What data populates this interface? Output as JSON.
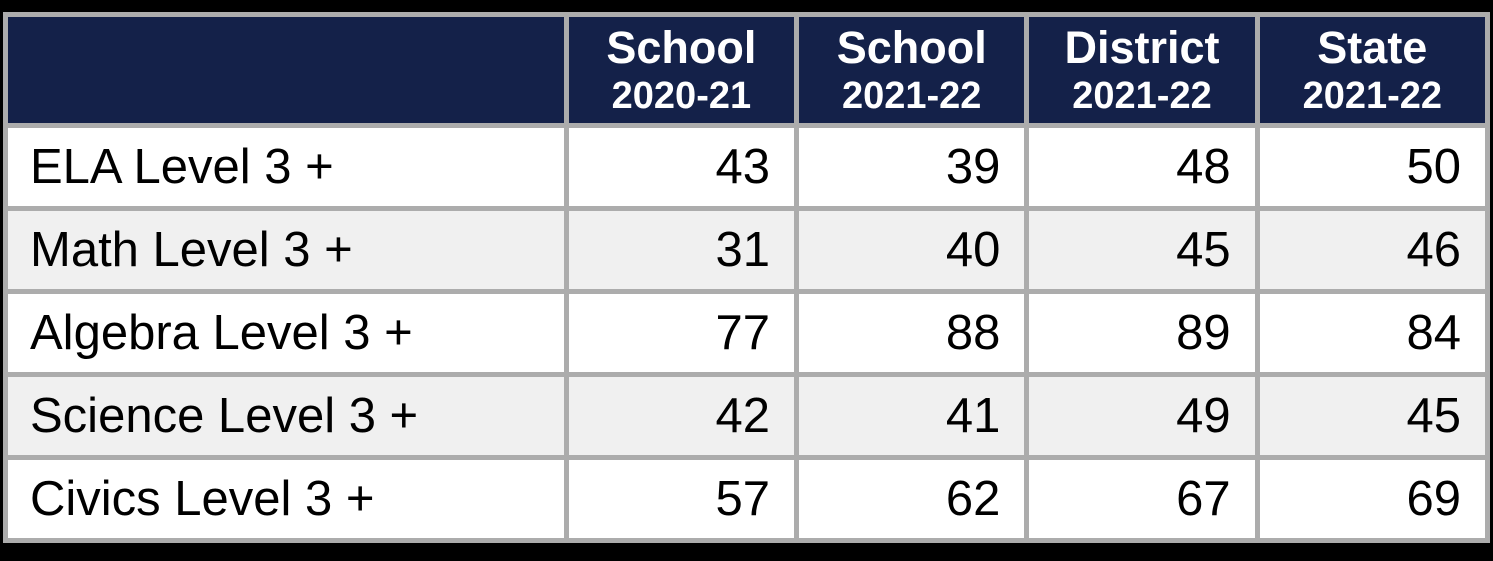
{
  "colors": {
    "header_background": "#142149",
    "header_text": "#ffffff",
    "grid_border": "#ACACAC",
    "row_alternate": "#F0F0F0",
    "row_default": "#ffffff",
    "outer_frame": "#000000",
    "body_text": "#000000"
  },
  "chart_data": {
    "type": "table",
    "title": "",
    "columns": [
      {
        "title": "",
        "subtitle": ""
      },
      {
        "title": "School",
        "subtitle": "2020-21"
      },
      {
        "title": "School",
        "subtitle": "2021-22"
      },
      {
        "title": "District",
        "subtitle": "2021-22"
      },
      {
        "title": "State",
        "subtitle": "2021-22"
      }
    ],
    "rows": [
      {
        "label": "ELA Level 3 +",
        "values": [
          43,
          39,
          48,
          50
        ]
      },
      {
        "label": "Math Level 3 +",
        "values": [
          31,
          40,
          45,
          46
        ]
      },
      {
        "label": "Algebra Level 3 +",
        "values": [
          77,
          88,
          89,
          84
        ]
      },
      {
        "label": "Science Level 3 +",
        "values": [
          42,
          41,
          49,
          45
        ]
      },
      {
        "label": "Civics Level 3 +",
        "values": [
          57,
          62,
          67,
          69
        ]
      }
    ]
  }
}
